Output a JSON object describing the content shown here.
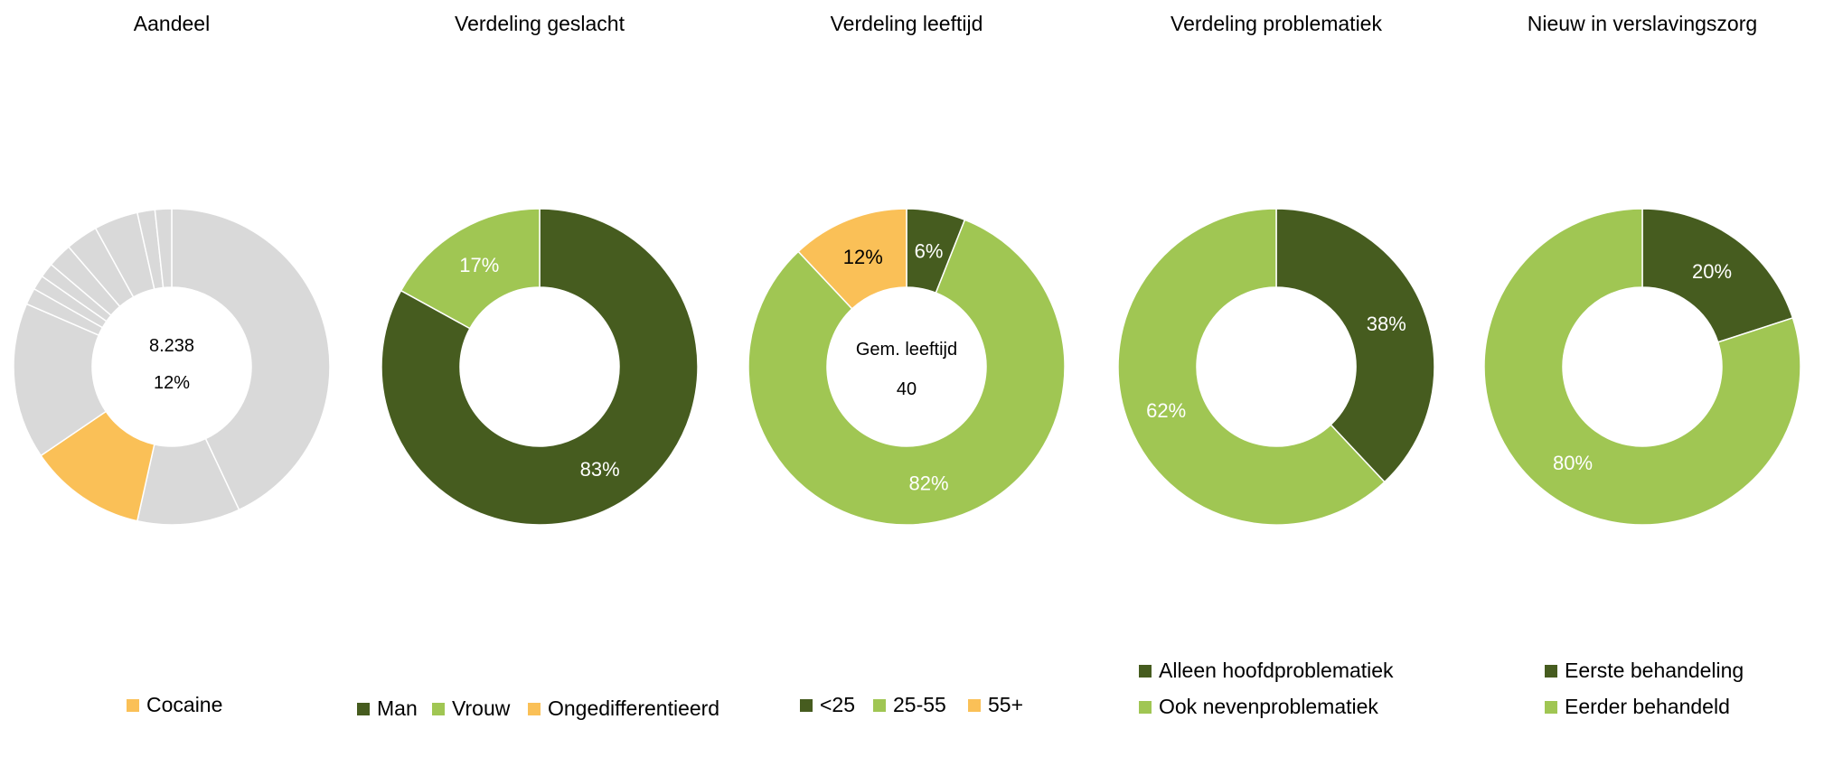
{
  "chart_data": [
    {
      "type": "pie",
      "title": "Aandeel",
      "center_lines": [
        "8.238",
        "12%"
      ],
      "slices": [
        {
          "label": "",
          "value": 43.0,
          "color": "#d9d9d9"
        },
        {
          "label": "",
          "value": 10.5,
          "color": "#d9d9d9"
        },
        {
          "label": "Cocaine",
          "value": 12.0,
          "color": "#fac057"
        },
        {
          "label": "",
          "value": 16.0,
          "color": "#d9d9d9"
        },
        {
          "label": "",
          "value": 1.7,
          "color": "#d9d9d9"
        },
        {
          "label": "",
          "value": 1.5,
          "color": "#d9d9d9"
        },
        {
          "label": "",
          "value": 1.5,
          "color": "#d9d9d9"
        },
        {
          "label": "",
          "value": 2.5,
          "color": "#d9d9d9"
        },
        {
          "label": "",
          "value": 3.3,
          "color": "#d9d9d9"
        },
        {
          "label": "",
          "value": 4.5,
          "color": "#d9d9d9"
        },
        {
          "label": "",
          "value": 1.8,
          "color": "#d9d9d9"
        },
        {
          "label": "",
          "value": 1.7,
          "color": "#d9d9d9"
        }
      ],
      "legend": [
        {
          "label": "Cocaine",
          "color": "#fac057"
        }
      ]
    },
    {
      "type": "pie",
      "title": "Verdeling geslacht",
      "center_lines": [],
      "slices": [
        {
          "label": "Man",
          "value": 83,
          "color": "#465c1f",
          "data_label": "83%"
        },
        {
          "label": "Vrouw",
          "value": 17,
          "color": "#a0c653",
          "data_label": "17%"
        },
        {
          "label": "Ongedifferentieerd",
          "value": 0,
          "color": "#fac057",
          "data_label": ""
        }
      ],
      "legend": [
        {
          "label": "Man",
          "color": "#465c1f"
        },
        {
          "label": "Vrouw",
          "color": "#a0c653"
        },
        {
          "label": "Ongedifferentieerd",
          "color": "#fac057"
        }
      ]
    },
    {
      "type": "pie",
      "title": "Verdeling leeftijd",
      "center_lines": [
        "Gem. leeftijd",
        "40"
      ],
      "slices": [
        {
          "label": "<25",
          "value": 6,
          "color": "#465c1f",
          "data_label": "6%"
        },
        {
          "label": "25-55",
          "value": 82,
          "color": "#a0c653",
          "data_label": "82%"
        },
        {
          "label": "55+",
          "value": 12,
          "color": "#fac057",
          "data_label": "12%"
        }
      ],
      "legend": [
        {
          "label": "<25",
          "color": "#465c1f"
        },
        {
          "label": "25-55",
          "color": "#a0c653"
        },
        {
          "label": "55+",
          "color": "#fac057"
        }
      ]
    },
    {
      "type": "pie",
      "title": "Verdeling problematiek",
      "center_lines": [],
      "slices": [
        {
          "label": "Alleen hoofdproblematiek",
          "value": 38,
          "color": "#465c1f",
          "data_label": "38%"
        },
        {
          "label": "Ook nevenproblematiek",
          "value": 62,
          "color": "#a0c653",
          "data_label": "62%"
        }
      ],
      "legend": [
        {
          "label": "Alleen hoofdproblematiek",
          "color": "#465c1f"
        },
        {
          "label": "Ook nevenproblematiek",
          "color": "#a0c653"
        }
      ]
    },
    {
      "type": "pie",
      "title": "Nieuw in verslavingszorg",
      "center_lines": [],
      "slices": [
        {
          "label": "Eerste behandeling",
          "value": 20,
          "color": "#465c1f",
          "data_label": "20%"
        },
        {
          "label": "Eerder behandeld",
          "value": 80,
          "color": "#a0c653",
          "data_label": "80%"
        }
      ],
      "legend": [
        {
          "label": "Eerste behandeling",
          "color": "#465c1f"
        },
        {
          "label": "Eerder behandeld",
          "color": "#a0c653"
        }
      ]
    }
  ]
}
